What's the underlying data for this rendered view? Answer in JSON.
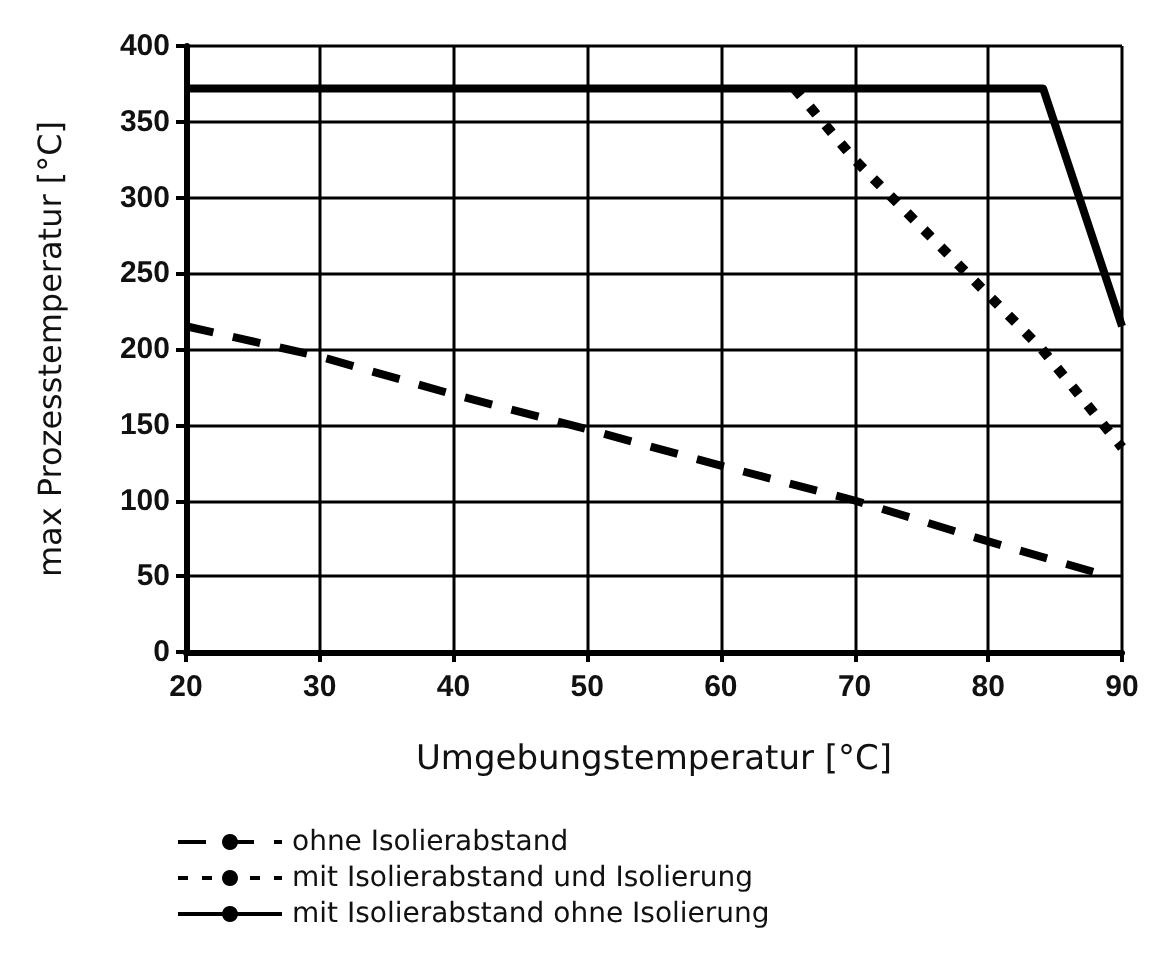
{
  "chart_data": {
    "type": "line",
    "xlabel": "Umgebungstemperatur [°C]",
    "ylabel": "max Prozesstemperatur [°C]",
    "xlim": [
      20,
      90
    ],
    "xticks": [
      20,
      30,
      40,
      50,
      60,
      70,
      80,
      90
    ],
    "ylim": [
      0,
      400
    ],
    "yticks": [
      0,
      50,
      100,
      150,
      200,
      250,
      300,
      350,
      400
    ],
    "grid": true,
    "legend": "bottom",
    "marker": "none",
    "series": [
      {
        "name": "ohne Isolierabstand",
        "color": "#000000",
        "line_style": "dashed",
        "x": [
          20,
          30,
          40,
          50,
          60,
          70,
          80,
          89
        ],
        "values": [
          215,
          195,
          170,
          147,
          123,
          100,
          73,
          50
        ]
      },
      {
        "name": "mit Isolierabstand und Isolierung",
        "color": "#000000",
        "line_style": "dotted",
        "x": [
          65.5,
          70,
          84,
          90
        ],
        "values": [
          372,
          325,
          200,
          135
        ]
      },
      {
        "name": "mit Isolierabstand ohne Isolierung",
        "color": "#000000",
        "line_style": "solid",
        "x": [
          20,
          84.1,
          90
        ],
        "values": [
          372,
          372,
          215
        ]
      }
    ]
  }
}
